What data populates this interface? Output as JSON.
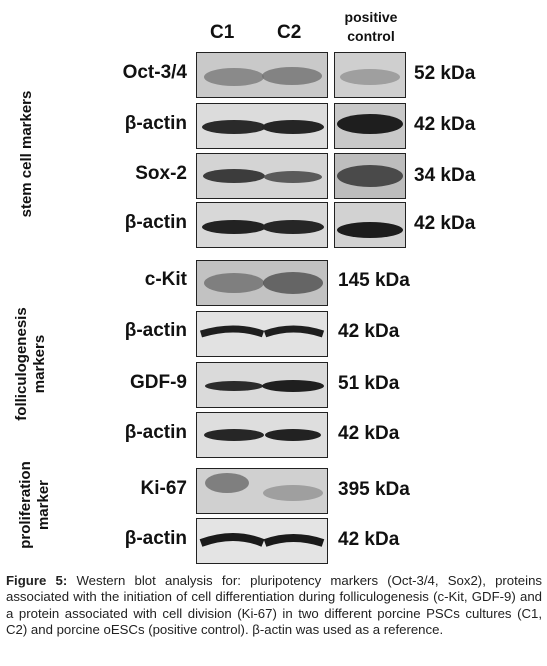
{
  "columns": {
    "c1": "C1",
    "c2": "C2",
    "positive_line1": "positive",
    "positive_line2": "control"
  },
  "groups": {
    "stem": "stem cell markers",
    "folliculo_line1": "folliculogenesis",
    "folliculo_line2": "markers",
    "prolif_line1": "proliferation",
    "prolif_line2": "marker"
  },
  "rows": [
    {
      "label": "Oct-3/4",
      "kda": "52 kDa"
    },
    {
      "label": "β-actin",
      "kda": "42 kDa"
    },
    {
      "label": "Sox-2",
      "kda": "34 kDa"
    },
    {
      "label": "β-actin",
      "kda": "42 kDa"
    },
    {
      "label": "c-Kit",
      "kda": "145 kDa"
    },
    {
      "label": "β-actin",
      "kda": "42 kDa"
    },
    {
      "label": "GDF-9",
      "kda": "51 kDa"
    },
    {
      "label": "β-actin",
      "kda": "42 kDa"
    },
    {
      "label": "Ki-67",
      "kda": "395 kDa"
    },
    {
      "label": "β-actin",
      "kda": "42 kDa"
    }
  ],
  "caption": {
    "figure_label": "Figure 5:",
    "text": "Western blot analysis for: pluripotency markers (Oct-3/4, Sox2), proteins associated with the initiation of cell differentiation during folliculogenesis (c-Kit, GDF-9) and a protein associated with cell division (Ki-67) in two different porcine PSCs cultures (C1, C2) and porcine oESCs (positive control). β-actin was used as a reference."
  }
}
